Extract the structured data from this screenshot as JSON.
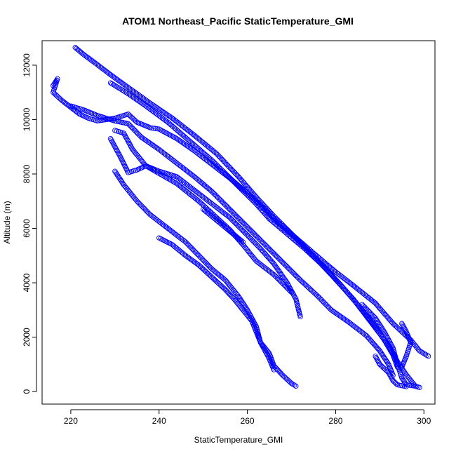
{
  "chart_data": {
    "type": "scatter",
    "title": "ATOM1 Northeast_Pacific StaticTemperature_GMI",
    "xlabel": "StaticTemperature_GMI",
    "ylabel": "Altitude (m)",
    "xlim": [
      213.5,
      302.5
    ],
    "ylim": [
      -460,
      12900
    ],
    "xticks": [
      220,
      240,
      260,
      280,
      300
    ],
    "yticks": [
      0,
      2000,
      4000,
      6000,
      8000,
      10000,
      12000
    ],
    "point_color": "#0000ff",
    "marker": "open-circle",
    "grid": false,
    "legend": "none",
    "series": [
      {
        "points": [
          [
            221,
            12650
          ],
          [
            223,
            12380
          ],
          [
            226,
            12020
          ],
          [
            229,
            11650
          ],
          [
            233,
            11180
          ],
          [
            238,
            10600
          ],
          [
            243,
            10050
          ],
          [
            248,
            9420
          ],
          [
            253,
            8750
          ],
          [
            258,
            7900
          ],
          [
            262,
            7150
          ],
          [
            266,
            6450
          ],
          [
            270,
            5800
          ],
          [
            274,
            5150
          ],
          [
            279,
            4300
          ],
          [
            284,
            3400
          ],
          [
            288,
            2550
          ],
          [
            292,
            1700
          ],
          [
            294,
            1100
          ],
          [
            296,
            620
          ],
          [
            298,
            210
          ]
        ]
      },
      {
        "points": [
          [
            229,
            11350
          ],
          [
            233,
            10950
          ],
          [
            237,
            10500
          ],
          [
            242,
            9900
          ],
          [
            247,
            9200
          ],
          [
            252,
            8500
          ],
          [
            257,
            7700
          ],
          [
            262,
            6900
          ],
          [
            265,
            6350
          ],
          [
            269,
            5800
          ],
          [
            273,
            5250
          ],
          [
            277,
            4650
          ],
          [
            281,
            3950
          ],
          [
            285,
            3200
          ],
          [
            288,
            2600
          ],
          [
            291,
            1900
          ],
          [
            293,
            1350
          ],
          [
            294,
            900
          ]
        ]
      },
      {
        "points": [
          [
            216,
            11250
          ],
          [
            217,
            11500
          ],
          [
            216,
            11000
          ],
          [
            218,
            10700
          ],
          [
            220,
            10450
          ],
          [
            222,
            10200
          ],
          [
            224,
            10050
          ],
          [
            226,
            9950
          ],
          [
            230,
            10050
          ],
          [
            233,
            10200
          ],
          [
            235,
            9900
          ],
          [
            238,
            9700
          ],
          [
            240,
            9650
          ],
          [
            244,
            9300
          ],
          [
            248,
            8850
          ],
          [
            252,
            8350
          ],
          [
            256,
            7850
          ],
          [
            260,
            7300
          ],
          [
            264,
            6700
          ],
          [
            267,
            6200
          ],
          [
            271,
            5650
          ],
          [
            276,
            4950
          ],
          [
            280,
            4400
          ],
          [
            284,
            3900
          ],
          [
            289,
            3250
          ],
          [
            293,
            2500
          ],
          [
            297,
            1900
          ],
          [
            299,
            1500
          ],
          [
            301,
            1300
          ]
        ]
      },
      {
        "points": [
          [
            220,
            10500
          ],
          [
            223,
            10350
          ],
          [
            226,
            10150
          ],
          [
            230,
            9950
          ],
          [
            233,
            9850
          ],
          [
            236,
            9350
          ],
          [
            240,
            8900
          ],
          [
            244,
            8400
          ],
          [
            248,
            7900
          ],
          [
            252,
            7350
          ],
          [
            256,
            6700
          ],
          [
            260,
            6050
          ],
          [
            264,
            5400
          ],
          [
            268,
            4750
          ],
          [
            272,
            4100
          ],
          [
            276,
            3500
          ],
          [
            279,
            3000
          ],
          [
            283,
            2550
          ],
          [
            287,
            2050
          ],
          [
            290,
            1500
          ],
          [
            292,
            1000
          ],
          [
            293,
            600
          ]
        ]
      },
      {
        "points": [
          [
            230,
            9600
          ],
          [
            232,
            9500
          ],
          [
            234,
            8900
          ],
          [
            237,
            8300
          ],
          [
            240,
            8100
          ],
          [
            244,
            7900
          ],
          [
            248,
            7400
          ],
          [
            252,
            6900
          ],
          [
            256,
            6400
          ],
          [
            260,
            5750
          ],
          [
            263,
            5250
          ],
          [
            266,
            4700
          ],
          [
            269,
            4000
          ],
          [
            271,
            3400
          ],
          [
            272,
            2750
          ]
        ]
      },
      {
        "points": [
          [
            229,
            9300
          ],
          [
            231,
            8700
          ],
          [
            233,
            8050
          ],
          [
            235,
            8150
          ],
          [
            237,
            8300
          ],
          [
            244,
            7650
          ],
          [
            249,
            7000
          ],
          [
            253,
            6400
          ],
          [
            256,
            5950
          ],
          [
            259,
            5400
          ],
          [
            262,
            4800
          ],
          [
            266,
            4300
          ],
          [
            270,
            3650
          ]
        ]
      },
      {
        "points": [
          [
            230,
            8100
          ],
          [
            232,
            7600
          ],
          [
            235,
            7000
          ],
          [
            238,
            6500
          ],
          [
            242,
            6000
          ],
          [
            246,
            5500
          ],
          [
            249,
            5000
          ],
          [
            252,
            4500
          ],
          [
            255,
            4100
          ],
          [
            258,
            3500
          ],
          [
            260,
            3000
          ],
          [
            262,
            2400
          ],
          [
            263,
            1800
          ],
          [
            265,
            1200
          ],
          [
            266,
            800
          ]
        ]
      },
      {
        "points": [
          [
            240,
            5650
          ],
          [
            243,
            5400
          ],
          [
            246,
            5000
          ],
          [
            249,
            4650
          ],
          [
            252,
            4200
          ],
          [
            255,
            3750
          ],
          [
            257,
            3400
          ],
          [
            259,
            3000
          ],
          [
            261,
            2600
          ],
          [
            262,
            2200
          ],
          [
            263,
            1800
          ],
          [
            265,
            1400
          ],
          [
            266,
            950
          ],
          [
            268,
            600
          ],
          [
            270,
            300
          ],
          [
            271,
            200
          ]
        ]
      },
      {
        "points": [
          [
            286,
            3200
          ],
          [
            289,
            2700
          ],
          [
            291,
            2200
          ],
          [
            293,
            1600
          ],
          [
            294,
            1000
          ],
          [
            295,
            500
          ],
          [
            296,
            250
          ],
          [
            298,
            200
          ],
          [
            299,
            150
          ]
        ]
      },
      {
        "points": [
          [
            289,
            1300
          ],
          [
            290,
            1000
          ],
          [
            292,
            700
          ],
          [
            293,
            400
          ],
          [
            294,
            250
          ],
          [
            296,
            180
          ]
        ]
      },
      {
        "points": [
          [
            295,
            2500
          ],
          [
            296,
            2200
          ],
          [
            297,
            1800
          ],
          [
            296,
            1300
          ],
          [
            295,
            900
          ]
        ]
      },
      {
        "points": [
          [
            250,
            6700
          ],
          [
            253,
            6300
          ],
          [
            256,
            5900
          ],
          [
            259,
            5500
          ]
        ]
      }
    ]
  }
}
